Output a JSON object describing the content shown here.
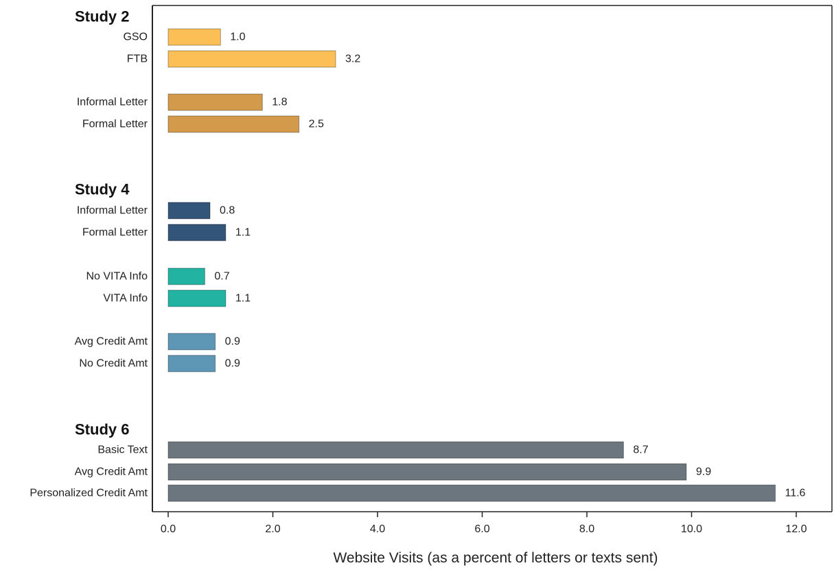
{
  "chart_data": {
    "type": "bar",
    "orientation": "horizontal",
    "xlabel": "Website Visits (as a percent of letters or texts sent)",
    "ylabel": "",
    "xlim": [
      0,
      12
    ],
    "x_ticks": [
      "0.0",
      "2.0",
      "4.0",
      "6.0",
      "8.0",
      "10.0",
      "12.0"
    ],
    "grid": false,
    "groups": [
      {
        "title": "Study 2",
        "bars": [
          {
            "label": "GSO",
            "value": 1.0,
            "value_label": "1.0",
            "color": "#fcbf55"
          },
          {
            "label": "FTB",
            "value": 3.2,
            "value_label": "3.2",
            "color": "#fcbf55"
          },
          {
            "label": "Informal Letter",
            "value": 1.8,
            "value_label": "1.8",
            "color": "#d39a4c"
          },
          {
            "label": "Formal Letter",
            "value": 2.5,
            "value_label": "2.5",
            "color": "#d39a4c"
          }
        ]
      },
      {
        "title": "Study 4",
        "bars": [
          {
            "label": "Informal Letter",
            "value": 0.8,
            "value_label": "0.8",
            "color": "#34557a"
          },
          {
            "label": "Formal Letter",
            "value": 1.1,
            "value_label": "1.1",
            "color": "#34557a"
          },
          {
            "label": "No VITA Info",
            "value": 0.7,
            "value_label": "0.7",
            "color": "#22b3a3"
          },
          {
            "label": "VITA Info",
            "value": 1.1,
            "value_label": "1.1",
            "color": "#22b3a3"
          },
          {
            "label": "Avg Credit Amt",
            "value": 0.9,
            "value_label": "0.9",
            "color": "#5e97b5"
          },
          {
            "label": "No Credit Amt",
            "value": 0.9,
            "value_label": "0.9",
            "color": "#5e97b5"
          }
        ]
      },
      {
        "title": "Study 6",
        "bars": [
          {
            "label": "Basic Text",
            "value": 8.7,
            "value_label": "8.7",
            "color": "#6b767e"
          },
          {
            "label": "Avg Credit Amt",
            "value": 9.9,
            "value_label": "9.9",
            "color": "#6b767e"
          },
          {
            "label": "Personalized Credit Amt",
            "value": 11.6,
            "value_label": "11.6",
            "color": "#6b767e"
          }
        ]
      }
    ]
  }
}
